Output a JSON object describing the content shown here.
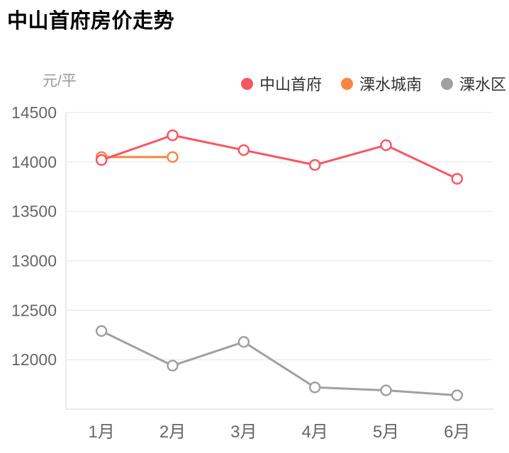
{
  "title": "中山首府房价走势",
  "chart_data": {
    "type": "line",
    "title": "中山首府房价走势",
    "unit_label": "元/平",
    "categories": [
      "1月",
      "2月",
      "3月",
      "4月",
      "5月",
      "6月"
    ],
    "y_ticks": [
      12000,
      12500,
      13000,
      13500,
      14000,
      14500
    ],
    "ylim": [
      11500,
      14500
    ],
    "grid": true,
    "legend_position": "top-right",
    "series": [
      {
        "name": "中山首府",
        "color": "#f9556066",
        "values": []
      },
      {
        "name": "溧水城南",
        "color": "#fa8443",
        "values": [
          14050,
          14050,
          null,
          null,
          null,
          null
        ]
      },
      {
        "name": "溧水区",
        "color": "#a0a0a0",
        "values": [
          12290,
          11940,
          12180,
          11720,
          11690,
          11640
        ]
      }
    ]
  },
  "series_fix": {
    "zhongshan_values": [
      14020,
      14270,
      14120,
      13970,
      14170,
      13830
    ],
    "zhongshan_color": "#f95562"
  },
  "colors": {
    "grid_line": "#ededed",
    "axis_line": "#e4e4e4",
    "tick_label": "#666666",
    "marker_fill": "#ffffff"
  }
}
